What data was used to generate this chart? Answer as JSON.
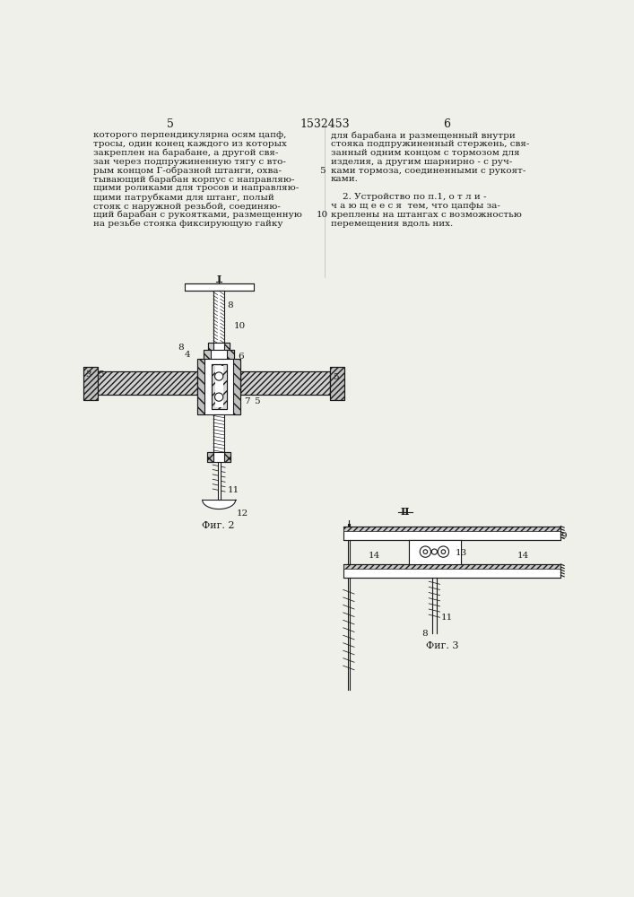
{
  "page_number_center": "1532453",
  "page_number_left": "5",
  "page_number_right": "6",
  "bg_color": "#f0f0eb",
  "text_color": "#1a1a1a",
  "line_color": "#1a1a1a",
  "left_text": [
    "которого перпендикулярна осям цапф,",
    "тросы, один конец каждого из которых",
    "закреплен на барабане, а другой свя-",
    "зан через подпружиненную тягу с вто-",
    "рым концом Г-образной штанги, охва-",
    "тывающий барабан корпус с направляю-",
    "щими роликами для тросов и направляю-",
    "щими патрубками для штанг, полый",
    "стояк с наружной резьбой, соединяю-",
    "щий барабан с рукоятками, размещенную",
    "на резьбе стояка фиксирующую гайку"
  ],
  "right_text": [
    "для барабана и размещенный внутри",
    "стояка подпружиненный стержень, свя-",
    "занный одним концом с тормозом для",
    "изделия, а другим шарнирно - с руч-",
    "ками тормоза, соединенными с рукоят-",
    "ками.",
    "",
    "    2. Устройство по п.1, о т л и -",
    "ч а ю щ е е с я  тем, что цапфы за-",
    "креплены на штангах с возможностью",
    "перемещения вдоль них."
  ],
  "fig2_label": "Фиг. 2",
  "fig3_label": "Фиг. 3"
}
